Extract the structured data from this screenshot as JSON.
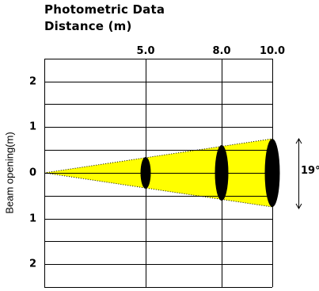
{
  "title": "Photometric Data",
  "subtitle": "Distance (m)",
  "y_axis_title": "Beam opening(m)",
  "beam_angle_label": "19°",
  "distances": [
    "5.0",
    "8.0",
    "10.0"
  ],
  "y_ticks": [
    "2",
    "1",
    "0",
    "1",
    "2"
  ],
  "colors": {
    "beam": "#ffff00",
    "ellipse": "#000000",
    "grid": "#000000"
  }
}
